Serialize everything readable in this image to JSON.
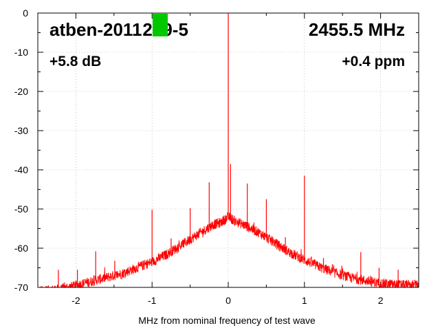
{
  "chart_data": {
    "type": "line",
    "xlabel": "MHz from nominal frequency of test wave",
    "ylabel": "",
    "xlim": [
      -2.5,
      2.5
    ],
    "ylim": [
      -70,
      0
    ],
    "x_ticks": [
      -2,
      -1,
      0,
      1,
      2
    ],
    "x_tick_labels": [
      "-2",
      "-1",
      "0",
      "1",
      "2"
    ],
    "y_ticks": [
      0,
      -10,
      -20,
      -30,
      -40,
      -50,
      -60,
      -70
    ],
    "y_tick_labels": [
      "0",
      "-10",
      "-20",
      "-30",
      "-40",
      "-50",
      "-60",
      "-70"
    ],
    "grid": true,
    "series_color": "#ff0000",
    "status_indicator_color": "#00c800",
    "annotations": {
      "device": "atben-2011",
      "device_suffix": "219-5",
      "frequency": "2455.5 MHz",
      "gain": "+5.8 dB",
      "offset": "+0.4 ppm"
    },
    "envelope": {
      "x": [
        -2.5,
        -2.2,
        -2.0,
        -1.8,
        -1.6,
        -1.4,
        -1.2,
        -1.0,
        -0.8,
        -0.6,
        -0.4,
        -0.2,
        -0.1,
        0.0,
        0.1,
        0.2,
        0.4,
        0.6,
        0.8,
        1.0,
        1.2,
        1.4,
        1.6,
        1.8,
        2.0,
        2.2,
        2.5
      ],
      "y": [
        -71,
        -70.5,
        -69.5,
        -68.5,
        -67.5,
        -66.5,
        -65,
        -63.5,
        -61.5,
        -59,
        -56.5,
        -54,
        -53.5,
        -52,
        -53.2,
        -54,
        -56,
        -58.5,
        -61,
        -63,
        -64.8,
        -66.3,
        -67.5,
        -68.3,
        -69,
        -69.3,
        -69.5
      ]
    },
    "spurs": [
      {
        "x": -2.23,
        "y": -65.5
      },
      {
        "x": -1.98,
        "y": -65.5
      },
      {
        "x": -1.74,
        "y": -60.8
      },
      {
        "x": -1.49,
        "y": -63.2
      },
      {
        "x": -1.25,
        "y": -64.5
      },
      {
        "x": -1.0,
        "y": -50.2
      },
      {
        "x": -0.75,
        "y": -57.5
      },
      {
        "x": -0.5,
        "y": -49.8
      },
      {
        "x": -0.25,
        "y": -43.2
      },
      {
        "x": 0.0,
        "y": 0
      },
      {
        "x": 0.03,
        "y": -38.5
      },
      {
        "x": 0.25,
        "y": -43.5
      },
      {
        "x": 0.5,
        "y": -47.5
      },
      {
        "x": 0.75,
        "y": -57.2
      },
      {
        "x": 1.0,
        "y": -41.5
      },
      {
        "x": 1.25,
        "y": -62.5
      },
      {
        "x": 1.49,
        "y": -64.5
      },
      {
        "x": 1.74,
        "y": -61.0
      },
      {
        "x": 1.98,
        "y": -65.0
      },
      {
        "x": 2.23,
        "y": -65.5
      }
    ]
  }
}
